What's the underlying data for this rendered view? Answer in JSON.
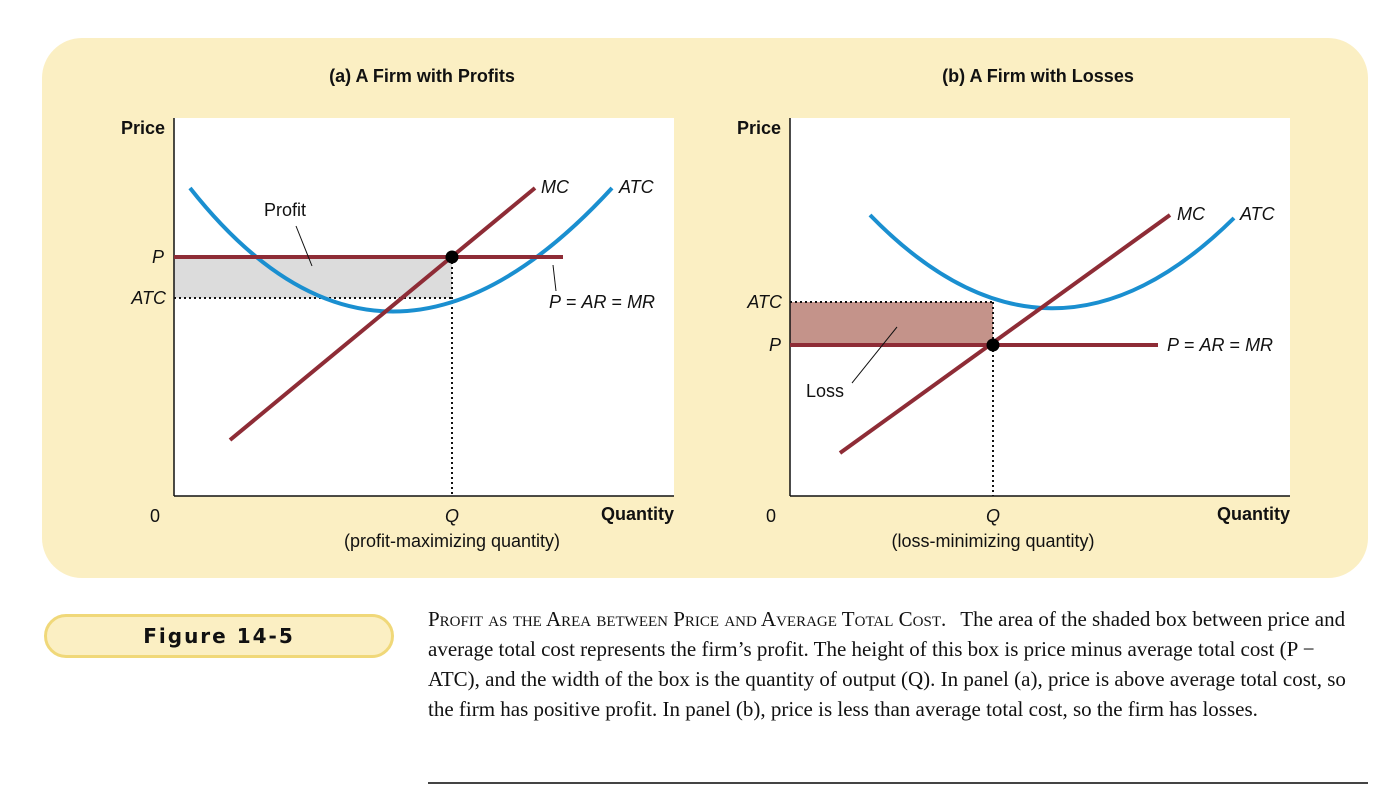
{
  "figure": {
    "label": "Figure 14-5",
    "caption_title": "Profit as the Area between Price and Average Total Cost.",
    "caption_body": "The area of the shaded box between price and average total cost represents the firm’s profit. The height of this box is price minus average total cost (P − ATC), and the width of the box is the quantity of output (Q). In panel (a), price is above average total cost, so the firm has positive profit. In panel (b), price is less than average total cost, so the firm has losses."
  },
  "colors": {
    "background_panel": "#fbefc3",
    "atc_curve": "#1a8fd0",
    "mc_line": "#8e2c36",
    "price_line": "#8e2c36",
    "profit_fill": "#dcdcdc",
    "loss_fill": "#c4938a"
  },
  "panels": [
    {
      "title": "(a) A Firm with Profits",
      "y_axis_label": "Price",
      "x_axis_label": "Quantity",
      "origin_label": "0",
      "q_label": "Q",
      "q_note": "(profit-maximizing quantity)",
      "p_label": "P",
      "atc_label": "ATC",
      "mc_curve_label": "MC",
      "atc_curve_label": "ATC",
      "price_line_label": "P = AR = MR",
      "area_label": "Profit"
    },
    {
      "title": "(b) A Firm with Losses",
      "y_axis_label": "Price",
      "x_axis_label": "Quantity",
      "origin_label": "0",
      "q_label": "Q",
      "q_note": "(loss-minimizing quantity)",
      "p_label": "P",
      "atc_label": "ATC",
      "mc_curve_label": "MC",
      "atc_curve_label": "ATC",
      "price_line_label": "P = AR = MR",
      "area_label": "Loss"
    }
  ]
}
